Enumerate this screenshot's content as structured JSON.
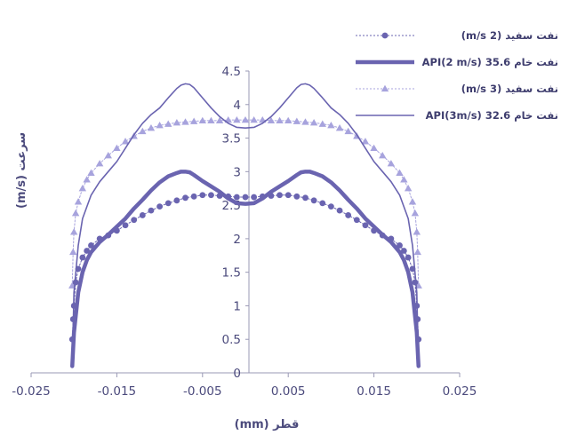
{
  "chart_data": {
    "type": "line",
    "xlabel": "قطر (mm)",
    "ylabel": "سرعت (m/s)",
    "xlim": [
      -0.025,
      0.025
    ],
    "ylim": [
      0,
      4.5
    ],
    "xticks": [
      -0.025,
      -0.015,
      -0.005,
      0.005,
      0.015,
      0.025
    ],
    "xtick_labels": [
      "-0.025",
      "-0.015",
      "-0.005",
      "0.005",
      "0.015",
      "0.025"
    ],
    "yticks": [
      0,
      0.5,
      1,
      1.5,
      2,
      2.5,
      3,
      3.5,
      4,
      4.5
    ],
    "ytick_labels": [
      "0",
      "0.5",
      "1",
      "1.5",
      "2",
      "2.5",
      "3",
      "3.5",
      "4",
      "4.5"
    ],
    "legend_position": "top-right",
    "series": [
      {
        "name": "نفت سفید (2 m/s)",
        "style": "dotted-circle",
        "color": "#6a64b0",
        "x": [
          -0.0202,
          -0.0201,
          -0.02,
          -0.0198,
          -0.0195,
          -0.019,
          -0.0185,
          -0.018,
          -0.017,
          -0.016,
          -0.015,
          -0.014,
          -0.013,
          -0.012,
          -0.011,
          -0.01,
          -0.009,
          -0.008,
          -0.007,
          -0.006,
          -0.005,
          -0.004,
          -0.003,
          -0.002,
          -0.001,
          0,
          0.001,
          0.002,
          0.003,
          0.004,
          0.005,
          0.006,
          0.007,
          0.008,
          0.009,
          0.01,
          0.011,
          0.012,
          0.013,
          0.014,
          0.015,
          0.016,
          0.017,
          0.018,
          0.0185,
          0.019,
          0.0195,
          0.0198,
          0.02,
          0.0201,
          0.0202
        ],
        "y": [
          0.5,
          0.8,
          1.0,
          1.35,
          1.55,
          1.72,
          1.82,
          1.9,
          2.0,
          2.05,
          2.12,
          2.2,
          2.28,
          2.35,
          2.42,
          2.48,
          2.53,
          2.57,
          2.61,
          2.63,
          2.65,
          2.65,
          2.64,
          2.63,
          2.62,
          2.62,
          2.62,
          2.63,
          2.64,
          2.65,
          2.65,
          2.63,
          2.61,
          2.57,
          2.53,
          2.48,
          2.42,
          2.35,
          2.28,
          2.2,
          2.12,
          2.05,
          2.0,
          1.9,
          1.82,
          1.72,
          1.55,
          1.35,
          1.0,
          0.8,
          0.5
        ]
      },
      {
        "name": "نفت خام 35.6 API(2 m/s)",
        "style": "thick-line",
        "color": "#6a64b0",
        "x": [
          -0.0202,
          -0.02,
          -0.0195,
          -0.019,
          -0.0185,
          -0.018,
          -0.017,
          -0.016,
          -0.015,
          -0.014,
          -0.013,
          -0.012,
          -0.011,
          -0.01,
          -0.009,
          -0.008,
          -0.0075,
          -0.007,
          -0.0065,
          -0.006,
          -0.005,
          -0.004,
          -0.003,
          -0.002,
          -0.001,
          0,
          0.001,
          0.002,
          0.003,
          0.004,
          0.005,
          0.006,
          0.0065,
          0.007,
          0.0075,
          0.008,
          0.009,
          0.01,
          0.011,
          0.012,
          0.013,
          0.014,
          0.015,
          0.016,
          0.017,
          0.018,
          0.0185,
          0.019,
          0.0195,
          0.02,
          0.0202
        ],
        "y": [
          0.1,
          0.6,
          1.2,
          1.5,
          1.68,
          1.8,
          1.95,
          2.06,
          2.18,
          2.3,
          2.45,
          2.58,
          2.72,
          2.84,
          2.93,
          2.98,
          3.0,
          3.0,
          2.99,
          2.95,
          2.86,
          2.78,
          2.7,
          2.6,
          2.53,
          2.52,
          2.53,
          2.6,
          2.7,
          2.78,
          2.86,
          2.95,
          2.99,
          3.0,
          3.0,
          2.98,
          2.93,
          2.84,
          2.72,
          2.58,
          2.45,
          2.3,
          2.18,
          2.06,
          1.95,
          1.8,
          1.68,
          1.5,
          1.2,
          0.6,
          0.1
        ]
      },
      {
        "name": "نفت سفید (3 m/s)",
        "style": "dotted-triangle",
        "color": "#a7a3dd",
        "x": [
          -0.0202,
          -0.0201,
          -0.02,
          -0.0198,
          -0.0195,
          -0.019,
          -0.0185,
          -0.018,
          -0.017,
          -0.016,
          -0.015,
          -0.014,
          -0.013,
          -0.012,
          -0.011,
          -0.01,
          -0.009,
          -0.008,
          -0.007,
          -0.006,
          -0.005,
          -0.004,
          -0.003,
          -0.002,
          -0.001,
          0,
          0.001,
          0.002,
          0.003,
          0.004,
          0.005,
          0.006,
          0.007,
          0.008,
          0.009,
          0.01,
          0.011,
          0.012,
          0.013,
          0.014,
          0.015,
          0.016,
          0.017,
          0.018,
          0.0185,
          0.019,
          0.0195,
          0.0198,
          0.02,
          0.0201,
          0.0202
        ],
        "y": [
          1.3,
          1.8,
          2.1,
          2.38,
          2.55,
          2.75,
          2.88,
          2.98,
          3.12,
          3.24,
          3.35,
          3.45,
          3.53,
          3.6,
          3.65,
          3.69,
          3.71,
          3.73,
          3.74,
          3.75,
          3.76,
          3.76,
          3.76,
          3.77,
          3.77,
          3.77,
          3.77,
          3.77,
          3.76,
          3.76,
          3.76,
          3.75,
          3.74,
          3.73,
          3.71,
          3.69,
          3.65,
          3.6,
          3.53,
          3.45,
          3.35,
          3.24,
          3.12,
          2.98,
          2.88,
          2.75,
          2.55,
          2.38,
          2.1,
          1.8,
          1.3
        ]
      },
      {
        "name": "نفت خام 32.6 API(3m/s)",
        "style": "thin-line",
        "color": "#6a64b0",
        "x": [
          -0.0202,
          -0.02,
          -0.0195,
          -0.019,
          -0.018,
          -0.017,
          -0.016,
          -0.015,
          -0.014,
          -0.013,
          -0.012,
          -0.011,
          -0.01,
          -0.009,
          -0.008,
          -0.0075,
          -0.007,
          -0.0065,
          -0.006,
          -0.005,
          -0.004,
          -0.003,
          -0.002,
          -0.001,
          0,
          0.001,
          0.002,
          0.003,
          0.004,
          0.005,
          0.006,
          0.0065,
          0.007,
          0.0075,
          0.008,
          0.009,
          0.01,
          0.011,
          0.012,
          0.013,
          0.014,
          0.015,
          0.016,
          0.017,
          0.018,
          0.019,
          0.0195,
          0.02,
          0.0202
        ],
        "y": [
          0.1,
          1.2,
          1.9,
          2.3,
          2.65,
          2.85,
          3.0,
          3.15,
          3.35,
          3.55,
          3.72,
          3.85,
          3.95,
          4.1,
          4.24,
          4.29,
          4.31,
          4.3,
          4.25,
          4.1,
          3.95,
          3.82,
          3.72,
          3.66,
          3.65,
          3.66,
          3.72,
          3.82,
          3.95,
          4.1,
          4.25,
          4.3,
          4.31,
          4.29,
          4.24,
          4.1,
          3.95,
          3.85,
          3.72,
          3.55,
          3.35,
          3.15,
          3.0,
          2.85,
          2.65,
          2.3,
          1.9,
          1.2,
          0.1
        ]
      }
    ]
  }
}
